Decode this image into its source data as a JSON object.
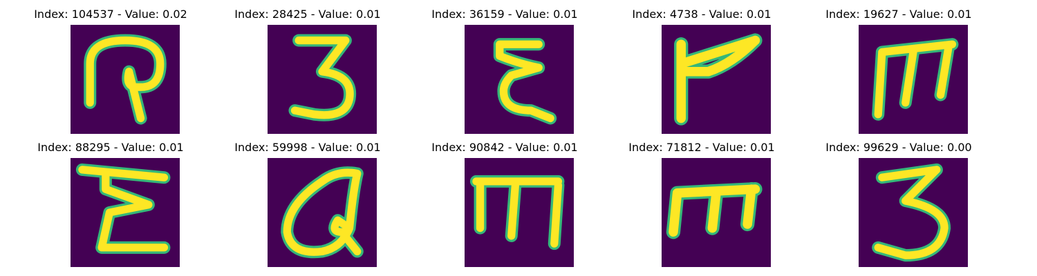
{
  "colors": {
    "background": "#440154",
    "stroke": "#fde725",
    "edge": "#35b779"
  },
  "panels": [
    {
      "index": "104537",
      "value": "0.02",
      "title": "Index: 104537 - Value: 0.02",
      "glyph": "glyph-hook-loop"
    },
    {
      "index": "28425",
      "value": "0.01",
      "title": "Index: 28425 - Value: 0.01",
      "glyph": "glyph-three"
    },
    {
      "index": "36159",
      "value": "0.01",
      "title": "Index: 36159 - Value: 0.01",
      "glyph": "glyph-epsilon"
    },
    {
      "index": "4738",
      "value": "0.01",
      "title": "Index: 4738 - Value: 0.01",
      "glyph": "glyph-flag"
    },
    {
      "index": "19627",
      "value": "0.01",
      "title": "Index: 19627 - Value: 0.01",
      "glyph": "glyph-m"
    },
    {
      "index": "88295",
      "value": "0.01",
      "title": "Index: 88295 - Value: 0.01",
      "glyph": "glyph-epsilon-bar"
    },
    {
      "index": "59998",
      "value": "0.01",
      "title": "Index: 59998 - Value: 0.01",
      "glyph": "glyph-loop"
    },
    {
      "index": "90842",
      "value": "0.01",
      "title": "Index: 90842 - Value: 0.01",
      "glyph": "glyph-m-bar"
    },
    {
      "index": "71812",
      "value": "0.01",
      "title": "Index: 71812 - Value: 0.01",
      "glyph": "glyph-m-small"
    },
    {
      "index": "99629",
      "value": "0.00",
      "title": "Index: 99629 - Value: 0.00",
      "glyph": "glyph-three-wide"
    }
  ]
}
